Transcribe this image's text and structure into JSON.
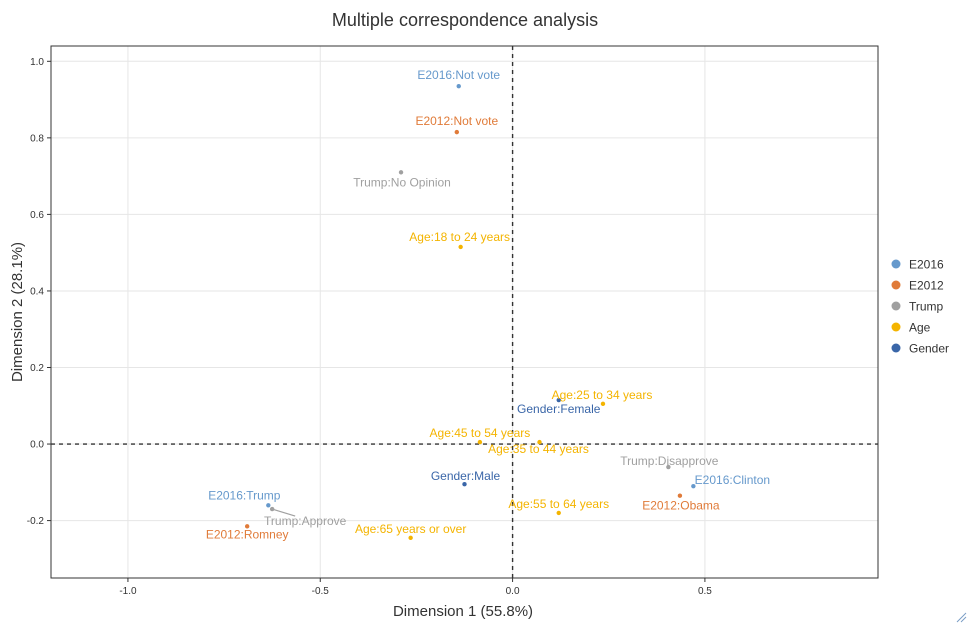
{
  "chart_data": {
    "type": "scatter",
    "title": "Multiple correspondence analysis",
    "xlabel": "Dimension 1 (55.8%)",
    "ylabel": "Dimension 2 (28.1%)",
    "xlim": [
      -1.2,
      0.95
    ],
    "ylim": [
      -0.35,
      1.04
    ],
    "xticks": [
      -1.0,
      -0.5,
      0.0,
      0.5
    ],
    "xtick_labels": [
      "-1.0",
      "-0.5",
      "0.0",
      "0.5"
    ],
    "yticks": [
      -0.2,
      0.0,
      0.2,
      0.4,
      0.6,
      0.8,
      1.0
    ],
    "ytick_labels": [
      "-0.2",
      "0.0",
      "0.2",
      "0.4",
      "0.6",
      "0.8",
      "1.0"
    ],
    "reference_lines": {
      "x": 0.0,
      "y": 0.0,
      "style": "dashed"
    },
    "grid": true,
    "legend": "right",
    "series": [
      {
        "name": "E2016",
        "color": "#6699CC",
        "points": [
          {
            "label": "E2016:Not vote",
            "x": -0.14,
            "y": 0.935
          },
          {
            "label": "E2016:Trump",
            "x": -0.635,
            "y": -0.16
          },
          {
            "label": "E2016:Clinton",
            "x": 0.47,
            "y": -0.11
          }
        ]
      },
      {
        "name": "E2012",
        "color": "#E07B39",
        "points": [
          {
            "label": "E2012:Not vote",
            "x": -0.145,
            "y": 0.815
          },
          {
            "label": "E2012:Romney",
            "x": -0.69,
            "y": -0.215
          },
          {
            "label": "E2012:Obama",
            "x": 0.435,
            "y": -0.135
          }
        ]
      },
      {
        "name": "Trump",
        "color": "#A0A0A0",
        "points": [
          {
            "label": "Trump:No Opinion",
            "x": -0.29,
            "y": 0.71
          },
          {
            "label": "Trump:Approve",
            "x": -0.625,
            "y": -0.17
          },
          {
            "label": "Trump:Disapprove",
            "x": 0.405,
            "y": -0.06
          }
        ]
      },
      {
        "name": "Age",
        "color": "#F4B400",
        "points": [
          {
            "label": "Age:18 to 24 years",
            "x": -0.135,
            "y": 0.515
          },
          {
            "label": "Age:25 to 34 years",
            "x": 0.235,
            "y": 0.105
          },
          {
            "label": "Age:45 to 54 years",
            "x": -0.085,
            "y": 0.005
          },
          {
            "label": "Age:35 to 44 years",
            "x": 0.07,
            "y": 0.005
          },
          {
            "label": "Age:55 to 64 years",
            "x": 0.12,
            "y": -0.18
          },
          {
            "label": "Age:65 years or over",
            "x": -0.265,
            "y": -0.245
          }
        ]
      },
      {
        "name": "Gender",
        "color": "#3A66A8",
        "points": [
          {
            "label": "Gender:Female",
            "x": 0.12,
            "y": 0.115
          },
          {
            "label": "Gender:Male",
            "x": -0.125,
            "y": -0.105
          }
        ]
      }
    ]
  }
}
